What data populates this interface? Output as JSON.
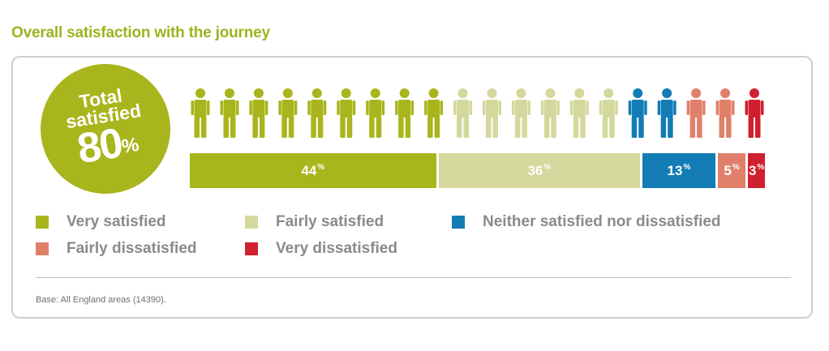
{
  "title": "Overall satisfaction with the journey",
  "badge": {
    "line1": "Total",
    "line2": "satisfied",
    "value": "80",
    "unit": "%"
  },
  "colors": {
    "very_satisfied": "#a9b51c",
    "fairly_satisfied": "#d4d89c",
    "neither": "#137cb5",
    "fairly_dissatisfied": "#e1806a",
    "very_dissatisfied": "#d0202f"
  },
  "legend": [
    {
      "label": "Very satisfied",
      "color": "#a9b51c"
    },
    {
      "label": "Fairly satisfied",
      "color": "#d4d89c"
    },
    {
      "label": "Neither satisfied nor dissatisfied",
      "color": "#137cb5"
    },
    {
      "label": "Fairly dissatisfied",
      "color": "#e1806a"
    },
    {
      "label": "Very dissatisfied",
      "color": "#d0202f"
    }
  ],
  "chart_data": {
    "type": "bar",
    "title": "Overall satisfaction with the journey",
    "orientation": "horizontal-stacked",
    "categories": [
      "Very satisfied",
      "Fairly satisfied",
      "Neither satisfied nor dissatisfied",
      "Fairly dissatisfied",
      "Very dissatisfied"
    ],
    "values": [
      44,
      36,
      13,
      5,
      3
    ],
    "value_labels": [
      "44",
      "36",
      "13",
      "5",
      "3"
    ],
    "unit": "%",
    "pictogram_counts": [
      9,
      6,
      2,
      2,
      1
    ],
    "total_satisfied": 80
  },
  "base_note": "Base: All England areas (14390)."
}
